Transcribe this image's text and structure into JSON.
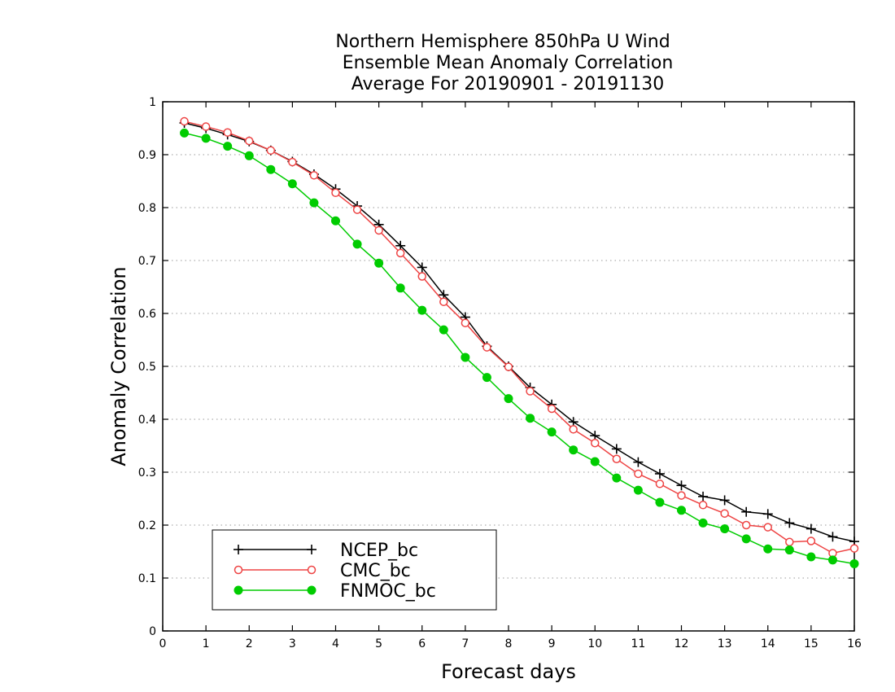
{
  "chart_data": {
    "type": "line",
    "title_lines": [
      "Northern Hemisphere 850hPa U Wind",
      "Ensemble Mean Anomaly Correlation",
      "Average For 20190901 - 20191130"
    ],
    "xlabel": "Forecast days",
    "ylabel": "Anomaly Correlation",
    "xlim": [
      0,
      16
    ],
    "ylim": [
      0,
      1
    ],
    "xticks": [
      0,
      1,
      2,
      3,
      4,
      5,
      6,
      7,
      8,
      9,
      10,
      11,
      12,
      13,
      14,
      15,
      16
    ],
    "yticks": [
      0,
      0.1,
      0.2,
      0.3,
      0.4,
      0.5,
      0.6,
      0.7,
      0.8,
      0.9,
      1
    ],
    "grid": "horizontal dotted",
    "legend_position": "bottom-left",
    "x": [
      0.5,
      1,
      1.5,
      2,
      2.5,
      3,
      3.5,
      4,
      4.5,
      5,
      5.5,
      6,
      6.5,
      7,
      7.5,
      8,
      8.5,
      9,
      9.5,
      10,
      10.5,
      11,
      11.5,
      12,
      12.5,
      13,
      13.5,
      14,
      14.5,
      15,
      15.5,
      16
    ],
    "series": [
      {
        "name": "NCEP_bc",
        "color": "#000000",
        "marker": "plus",
        "values": [
          0.96,
          0.95,
          0.938,
          0.925,
          0.908,
          0.887,
          0.863,
          0.835,
          0.803,
          0.768,
          0.728,
          0.687,
          0.635,
          0.593,
          0.538,
          0.5,
          0.46,
          0.428,
          0.395,
          0.369,
          0.344,
          0.319,
          0.297,
          0.275,
          0.254,
          0.247,
          0.225,
          0.221,
          0.204,
          0.193,
          0.178,
          0.169
        ]
      },
      {
        "name": "CMC_bc",
        "color": "#ee4444",
        "marker": "open-circle",
        "values": [
          0.963,
          0.953,
          0.942,
          0.926,
          0.908,
          0.886,
          0.861,
          0.828,
          0.796,
          0.757,
          0.714,
          0.67,
          0.622,
          0.582,
          0.536,
          0.499,
          0.453,
          0.42,
          0.381,
          0.355,
          0.325,
          0.297,
          0.278,
          0.256,
          0.238,
          0.222,
          0.2,
          0.196,
          0.168,
          0.17,
          0.147,
          0.156
        ]
      },
      {
        "name": "FNMOC_bc",
        "color": "#00cc00",
        "marker": "filled-circle",
        "values": [
          0.941,
          0.931,
          0.916,
          0.898,
          0.872,
          0.845,
          0.809,
          0.775,
          0.731,
          0.695,
          0.648,
          0.606,
          0.569,
          0.517,
          0.479,
          0.439,
          0.402,
          0.376,
          0.342,
          0.32,
          0.289,
          0.266,
          0.243,
          0.228,
          0.204,
          0.193,
          0.174,
          0.155,
          0.153,
          0.14,
          0.134,
          0.127
        ]
      }
    ]
  }
}
